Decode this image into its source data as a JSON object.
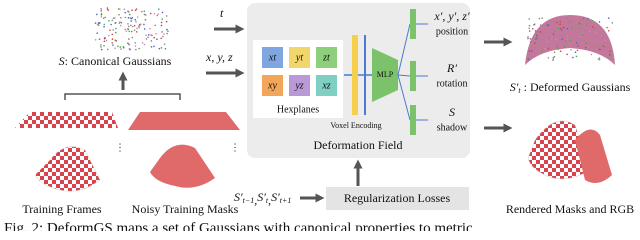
{
  "inputs": {
    "time": "t",
    "position": "x, y, z"
  },
  "canonical": {
    "symbol": "S",
    "text": ": Canonical Gaussians"
  },
  "deformation_field": {
    "title": "Deformation Field",
    "hexplanes": {
      "title": "Hexplanes",
      "planes": [
        "xt",
        "yt",
        "zt",
        "xy",
        "yz",
        "xz"
      ]
    },
    "voxel_encoding": "Voxel Encoding",
    "mlp": "MLP",
    "outputs": [
      {
        "symbol": "x′, y′, z′",
        "label": "position"
      },
      {
        "symbol": "R′",
        "label": "rotation"
      },
      {
        "symbol": "S",
        "label": "shadow"
      }
    ]
  },
  "deformed": {
    "symbol": "S′",
    "sub": "t",
    "text": " : Deformed Gaussians"
  },
  "training": {
    "frames": "Training Frames",
    "masks": "Noisy Training Masks"
  },
  "regularization": {
    "terms": [
      {
        "symbol": "S′",
        "sub": "t−1",
        "sep": ","
      },
      {
        "symbol": "S′",
        "sub": "t",
        "sep": ","
      },
      {
        "symbol": "S′",
        "sub": "t+1",
        "sep": ""
      }
    ],
    "label": "Regularization Losses"
  },
  "rendered": "Rendered Masks and RGB",
  "caption": "Fig. 2: DeformGS maps a set of Gaussians with canonical properties to metric"
}
